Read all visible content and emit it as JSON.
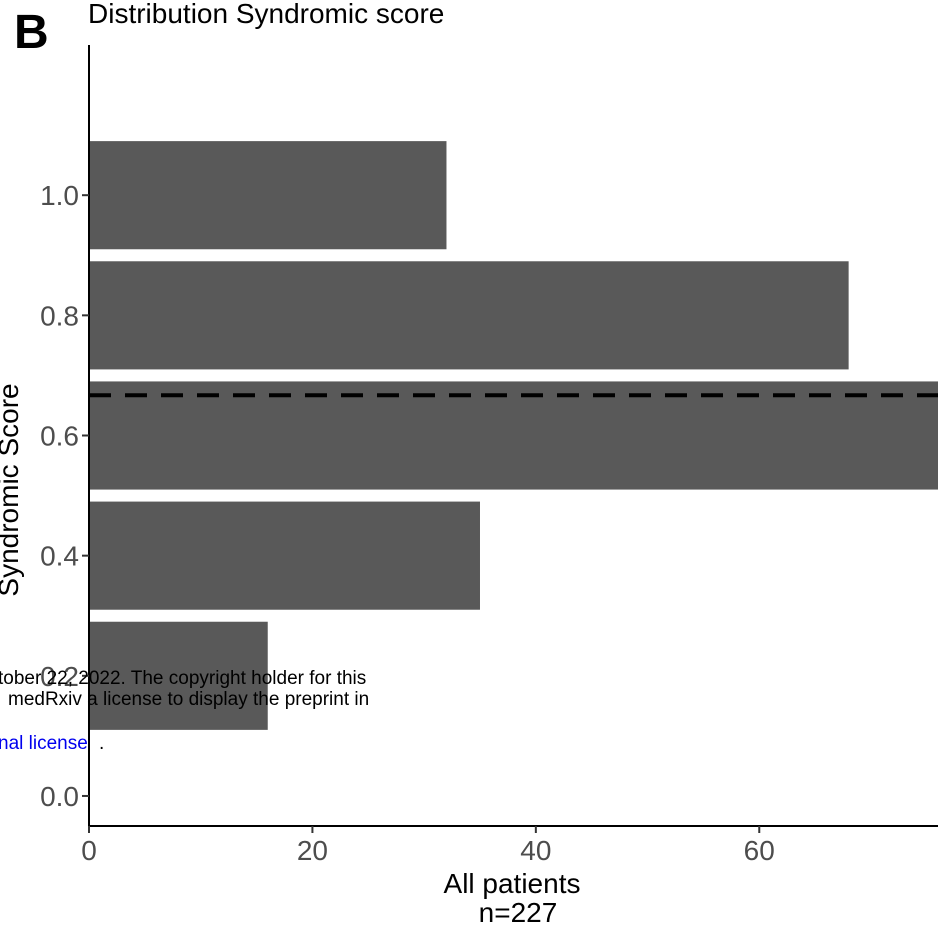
{
  "panel_letter": "B",
  "chart_data": {
    "type": "bar",
    "orientation": "horizontal",
    "title": "Distribution Syndromic score",
    "xlabel": "All patients",
    "xlabel_sub": "n=227",
    "ylabel": "Syndromic Score",
    "categories": [
      0.2,
      0.4,
      0.6,
      0.8,
      1.0
    ],
    "values": [
      16,
      35,
      76,
      68,
      32
    ],
    "xlim": [
      0,
      76
    ],
    "ylim": [
      -0.05,
      1.25
    ],
    "x_ticks": [
      0,
      20,
      40,
      60
    ],
    "x_tick_labels": [
      "0",
      "20",
      "40",
      "60"
    ],
    "y_ticks": [
      0.0,
      0.4,
      0.6,
      0.8,
      1.0
    ],
    "y_tick_labels": [
      "0.0",
      "0.4",
      "0.6",
      "0.8",
      "1.0"
    ],
    "y_partial_tick_label": "0.2",
    "mean_line": {
      "y": 0.667,
      "style": "dashed"
    },
    "bar_color": "#595959",
    "grid": false,
    "legend": "none"
  },
  "overlay_text": {
    "line1": "tober 22, 2022. The copyright holder for this",
    "line2": "medRxiv a license to display the preprint in",
    "line3_link": "nal license",
    "line3_tail": "."
  }
}
